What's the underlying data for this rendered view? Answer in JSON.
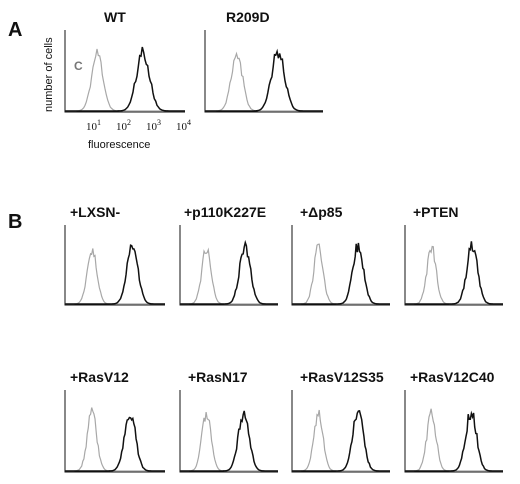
{
  "panels": {
    "A": {
      "letter": "A",
      "ylabel": "number of cells",
      "xlabel": "fluorescence",
      "curve_label": "C"
    },
    "B": {
      "letter": "B"
    }
  },
  "colors": {
    "control_curve": "#a8a8a8",
    "sample_curve": "#111111",
    "axes": "#111111"
  },
  "chart_data": [
    {
      "type": "line",
      "title": "WT",
      "xscale": "log",
      "xlim": [
        1,
        10000
      ],
      "xticks": [
        10,
        100,
        1000,
        10000
      ],
      "control_peak": 12,
      "sample_peak": 400
    },
    {
      "type": "line",
      "title": "R209D",
      "xscale": "log",
      "xlim": [
        1,
        10000
      ],
      "control_peak": 12,
      "sample_peak": 300
    },
    {
      "type": "line",
      "title": "+LXSN-",
      "xscale": "log",
      "xlim": [
        1,
        10000
      ],
      "control_peak": 12,
      "sample_peak": 500
    },
    {
      "type": "line",
      "title": "+p110K227E",
      "xscale": "log",
      "xlim": [
        1,
        10000
      ],
      "control_peak": 12,
      "sample_peak": 450
    },
    {
      "type": "line",
      "title": "+Δp85",
      "xscale": "log",
      "xlim": [
        1,
        10000
      ],
      "control_peak": 12,
      "sample_peak": 500
    },
    {
      "type": "line",
      "title": "+PTEN",
      "xscale": "log",
      "xlim": [
        1,
        10000
      ],
      "control_peak": 12,
      "sample_peak": 550
    },
    {
      "type": "line",
      "title": "+RasV12",
      "xscale": "log",
      "xlim": [
        1,
        10000
      ],
      "control_peak": 12,
      "sample_peak": 400
    },
    {
      "type": "line",
      "title": "+RasN17",
      "xscale": "log",
      "xlim": [
        1,
        10000
      ],
      "control_peak": 12,
      "sample_peak": 400
    },
    {
      "type": "line",
      "title": "+RasV12S35",
      "xscale": "log",
      "xlim": [
        1,
        10000
      ],
      "control_peak": 12,
      "sample_peak": 500
    },
    {
      "type": "line",
      "title": "+RasV12C40",
      "xscale": "log",
      "xlim": [
        1,
        10000
      ],
      "control_peak": 12,
      "sample_peak": 500
    }
  ]
}
